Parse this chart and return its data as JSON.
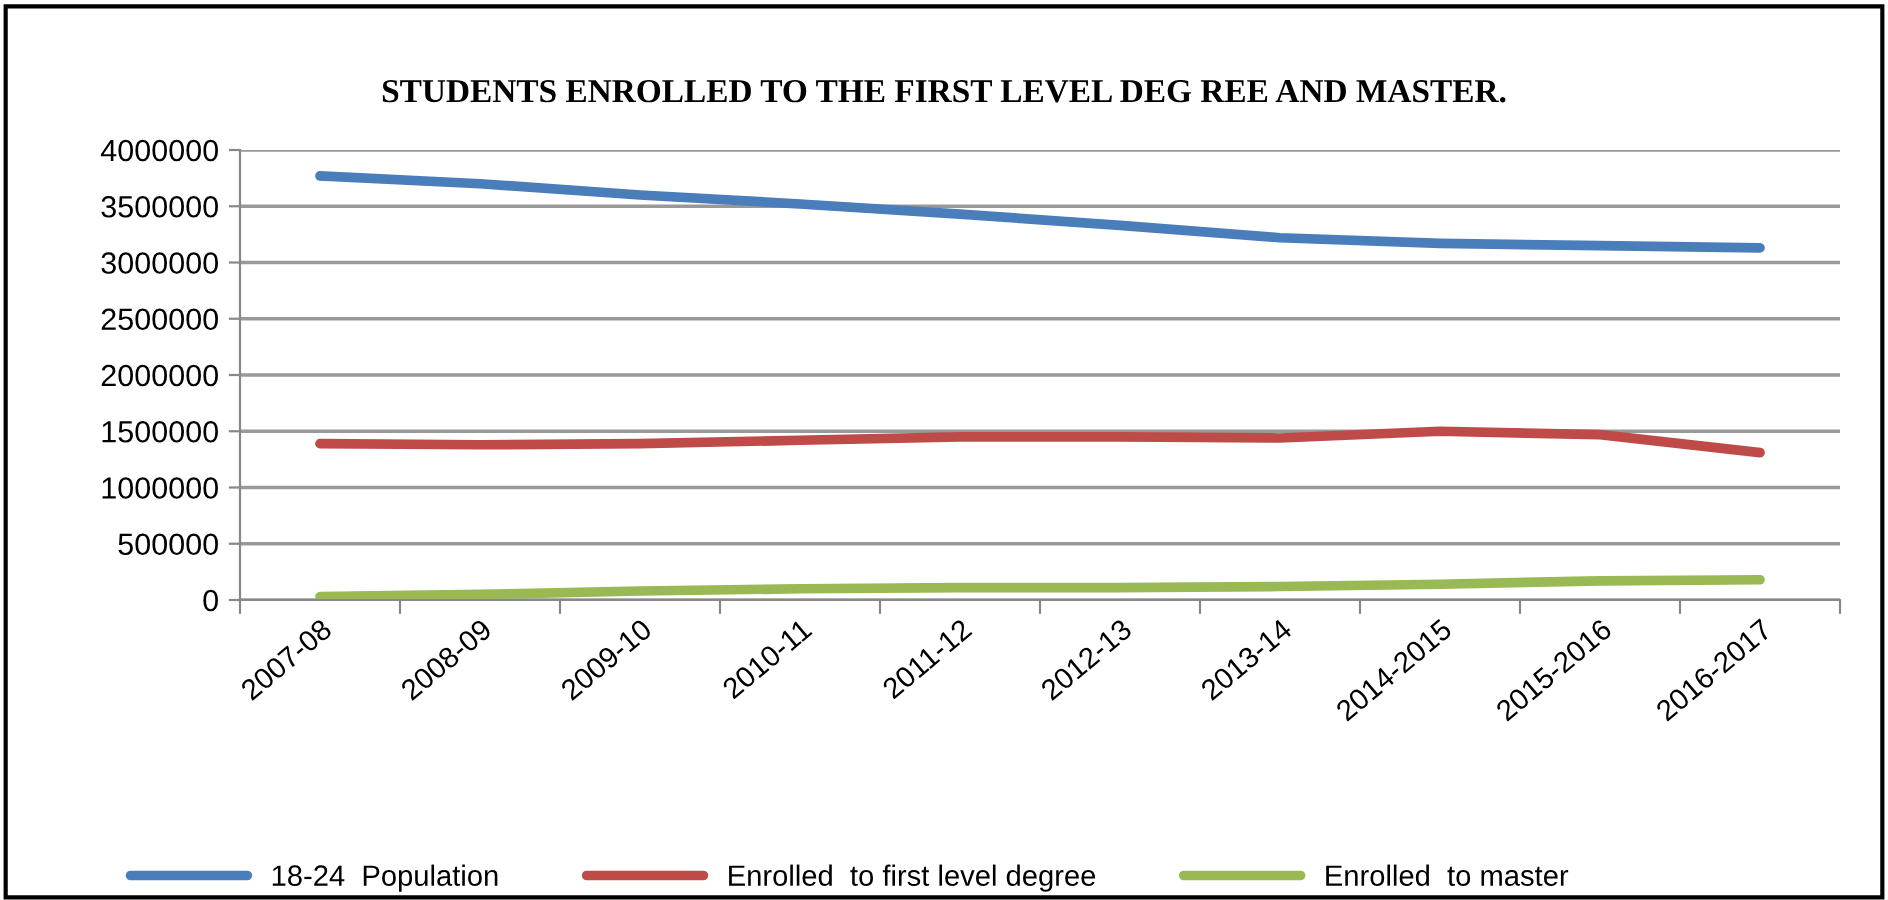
{
  "chart_data": {
    "type": "line",
    "title": "STUDENTS ENROLLED TO THE FIRST LEVEL DEG REE AND MASTER.",
    "categories": [
      "2007-08",
      "2008-09",
      "2009-10",
      "2010-11",
      "2011-12",
      "2012-13",
      "2013-14",
      "2014-2015",
      "2015-2016",
      "2016-2017"
    ],
    "series": [
      {
        "name": "18-24  Population",
        "color": "#4a7ebb",
        "values": [
          3770000,
          3700000,
          3600000,
          3520000,
          3430000,
          3330000,
          3220000,
          3170000,
          3150000,
          3130000
        ]
      },
      {
        "name": "Enrolled  to first level degree",
        "color": "#be4b48",
        "values": [
          1390000,
          1380000,
          1390000,
          1420000,
          1450000,
          1450000,
          1440000,
          1500000,
          1470000,
          1310000
        ]
      },
      {
        "name": "Enrolled  to master",
        "color": "#98b954",
        "values": [
          30000,
          50000,
          80000,
          100000,
          110000,
          110000,
          120000,
          140000,
          170000,
          180000
        ]
      }
    ],
    "ylim": [
      0,
      4000000
    ],
    "yticks": [
      0,
      500000,
      1000000,
      1500000,
      2000000,
      2500000,
      3000000,
      3500000,
      4000000
    ],
    "grid": "y",
    "legend": "bottom",
    "marker": "none",
    "line_style": "solid"
  }
}
